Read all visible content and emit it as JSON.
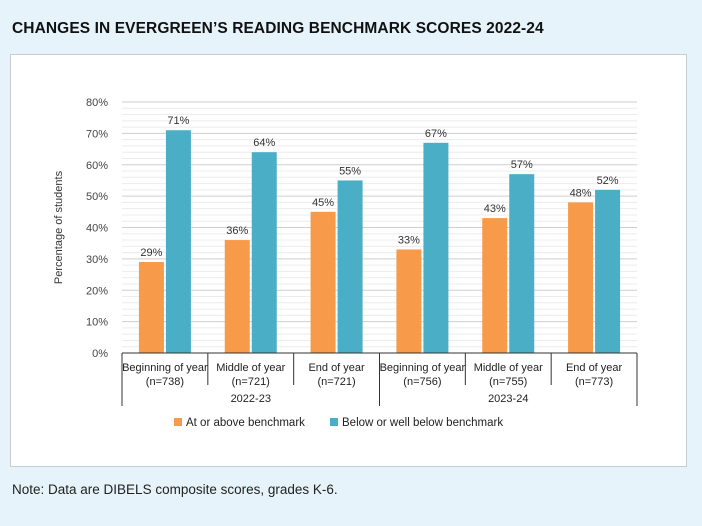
{
  "title": "CHANGES IN EVERGREEN’S READING BENCHMARK SCORES 2022-24",
  "note": "Note: Data are DIBELS composite scores, grades K-6.",
  "colors": {
    "at_or_above": "#f79a4a",
    "below": "#4aaec7"
  },
  "chart_data": {
    "type": "bar",
    "ylabel": "Percentage of students",
    "ylim": [
      0,
      80
    ],
    "yticks": [
      "0%",
      "10%",
      "20%",
      "30%",
      "40%",
      "50%",
      "60%",
      "70%",
      "80%"
    ],
    "categories": [
      [
        "Beginning of year",
        "(n=738)"
      ],
      [
        "Middle of year",
        "(n=721)"
      ],
      [
        "End of year",
        "(n=721)"
      ],
      [
        "Beginning of year",
        "(n=756)"
      ],
      [
        "Middle of year",
        "(n=755)"
      ],
      [
        "End of year",
        "(n=773)"
      ]
    ],
    "groups": [
      "2022-23",
      "2023-24"
    ],
    "series": [
      {
        "name": "At or above benchmark",
        "values": [
          29,
          36,
          45,
          33,
          43,
          48
        ],
        "labels": [
          "29%",
          "36%",
          "45%",
          "33%",
          "43%",
          "48%"
        ]
      },
      {
        "name": "Below or well below benchmark",
        "values": [
          71,
          64,
          55,
          67,
          57,
          52
        ],
        "labels": [
          "71%",
          "64%",
          "55%",
          "67%",
          "57%",
          "52%"
        ]
      }
    ],
    "legend": "bottom",
    "grid": true
  }
}
